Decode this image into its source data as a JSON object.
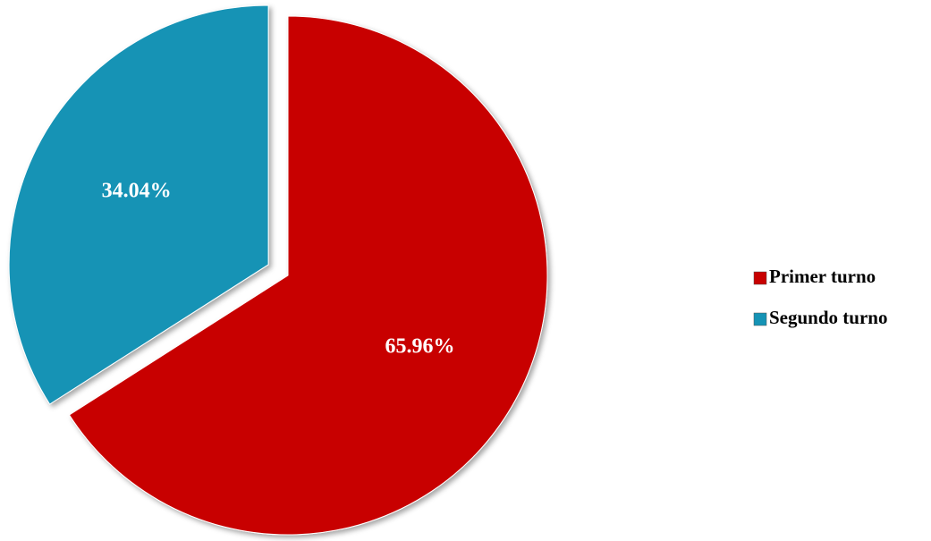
{
  "chart_data": {
    "type": "pie",
    "categories": [
      "Primer turno",
      "Segundo turno"
    ],
    "values": [
      65.96,
      34.04
    ],
    "value_labels": [
      "65.96%",
      "34.04%"
    ],
    "colors": [
      "#c80000",
      "#1593b5"
    ],
    "explode": [
      false,
      true
    ],
    "legend": "right"
  }
}
